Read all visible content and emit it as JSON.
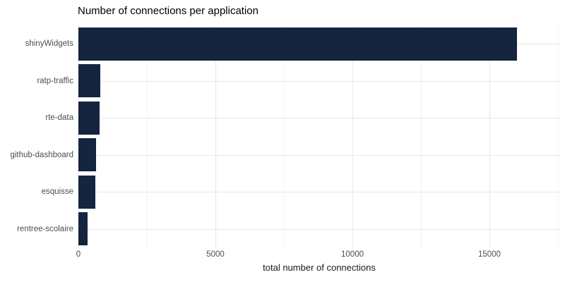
{
  "colors": {
    "bar": "#15243f",
    "grid_major": "#e8e8e8",
    "grid_minor": "#f3f3f3",
    "axis_text": "#4d4d4d",
    "title_text": "#000000",
    "xlabel_text": "#1a1a1a",
    "background": "#ffffff"
  },
  "chart_data": {
    "type": "bar",
    "orientation": "horizontal",
    "title": "Number of connections per application",
    "categories": [
      "shinyWidgets",
      "ratp-traffic",
      "rte-data",
      "github-dashboard",
      "esquisse",
      "rentree-scolaire"
    ],
    "values": [
      16000,
      800,
      780,
      650,
      620,
      340
    ],
    "xlabel": "total number of connections",
    "ylabel": "",
    "x_ticks": [
      0,
      5000,
      10000,
      15000
    ],
    "x_tick_labels": [
      "0",
      "5000",
      "10000",
      "15000"
    ],
    "x_minor_ticks": [
      2500,
      7500,
      12500,
      17500
    ],
    "xlim": [
      0,
      17580
    ],
    "grid": true,
    "legend": false
  }
}
